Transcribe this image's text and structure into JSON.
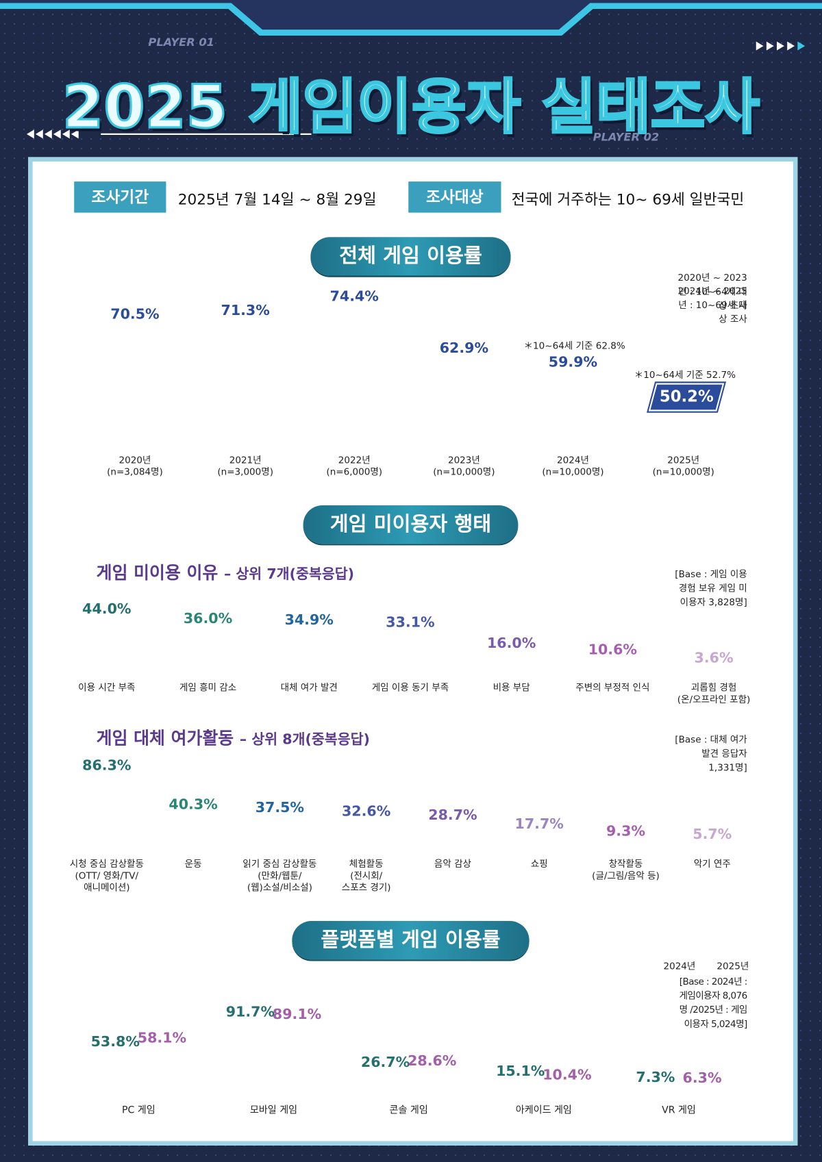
{
  "header": {
    "tag_left": "PLAYER 01",
    "title": "2025 게임이용자 실태조사",
    "tag_right": "PLAYER 02"
  },
  "survey": {
    "period_label": "조사기간",
    "period": "2025년 7월 14일 ~ 8월 29일",
    "target_label": "조사대상",
    "target": "전국에 거주하는 10~ 69세 일반국민"
  },
  "sections": [
    "전체 게임 이용률",
    "게임 미이용자 행태",
    "플랫폼별 게임 이용률"
  ],
  "chart_data": [
    {
      "type": "line",
      "notes": [
        "2020년 ~ 2023년 : 10~64세 대상 조사",
        "2024년 ~ 2025년 : 10~69세 대상 조사"
      ],
      "categories": [
        "2020년",
        "2021년",
        "2022년",
        "2023년",
        "2024년",
        "2025년"
      ],
      "sample_sizes": [
        "(n=3,084명)",
        "(n=3,000명)",
        "(n=6,000명)",
        "(n=10,000명)",
        "(n=10,000명)",
        "(n=10,000명)"
      ],
      "values": [
        70.5,
        71.3,
        74.4,
        62.9,
        59.9,
        50.2
      ],
      "value_labels": [
        "70.5%",
        "71.3%",
        "74.4%",
        "62.9%",
        "59.9%",
        "50.2%"
      ],
      "point_notes": [
        null,
        null,
        null,
        null,
        "＊10~64세 기준 62.8%",
        "＊10~64세 기준 52.7%"
      ],
      "color": "#2b4c9b"
    },
    {
      "type": "bar",
      "title": "게임 미이용 이유",
      "subtitle": "– 상위 7개(중복응답)",
      "base": "[Base : 게임 이용 경험 보유 게임 미이용자 3,828명]",
      "categories": [
        "이용 시간 부족",
        "게임 흥미 감소",
        "대체 여가 발견",
        "게임 이용 동기 부족",
        "비용 부담",
        "주변의 부정적 인식",
        "괴롭힘 경험\n(온/오프라인 포함)"
      ],
      "values": [
        44.0,
        36.0,
        34.9,
        33.1,
        16.0,
        10.6,
        3.6
      ],
      "value_labels": [
        "44.0%",
        "36.0%",
        "34.9%",
        "33.1%",
        "16.0%",
        "10.6%",
        "3.6%"
      ],
      "colors": [
        "#23706e",
        "#2a8577",
        "#2265a0",
        "#4457a8",
        "#7a5aad",
        "#a65fb0",
        "#c9a6d1"
      ]
    },
    {
      "type": "bar",
      "title": "게임 대체 여가활동",
      "subtitle": "– 상위 8개(중복응답)",
      "base": "[Base : 대체 여가 발견 응답자 1,331명]",
      "categories": [
        "시청 중심 감상활동\n(OTT/ 영화/TV/\n애니메이션)",
        "운동",
        "읽기 중심 감상활동\n(만화/웹툰/\n(웹)소설/비소설)",
        "체험활동\n(전시회/\n스포츠 경기)",
        "음악 감상",
        "쇼핑",
        "창작활동\n(글/그림/음악 등)",
        "악기 연주"
      ],
      "values": [
        86.3,
        40.3,
        37.5,
        32.6,
        28.7,
        17.7,
        9.3,
        5.7
      ],
      "value_labels": [
        "86.3%",
        "40.3%",
        "37.5%",
        "32.6%",
        "28.7%",
        "17.7%",
        "9.3%",
        "5.7%"
      ],
      "colors": [
        "#23706e",
        "#2a8577",
        "#2265a0",
        "#4457a8",
        "#7a5aad",
        "#9a84c5",
        "#a65fb0",
        "#c9a6d1"
      ]
    },
    {
      "type": "grouped_bar",
      "base": "[Base : 2024년 : 게임이용자 8,076명 /2025년 : 게임이용자 5,024명]",
      "categories": [
        "PC 게임",
        "모바일 게임",
        "콘솔 게임",
        "아케이드 게임",
        "VR 게임"
      ],
      "series": [
        {
          "name": "2024년",
          "color": "#23706e",
          "values": [
            53.8,
            91.7,
            26.7,
            15.1,
            7.3
          ],
          "value_labels": [
            "53.8%",
            "91.7%",
            "26.7%",
            "15.1%",
            "7.3%"
          ]
        },
        {
          "name": "2025년",
          "color": "#a45fab",
          "values": [
            58.1,
            89.1,
            28.6,
            10.4,
            6.3
          ],
          "value_labels": [
            "58.1%",
            "89.1%",
            "28.6%",
            "10.4%",
            "6.3%"
          ]
        }
      ],
      "legend": "top-right"
    }
  ]
}
